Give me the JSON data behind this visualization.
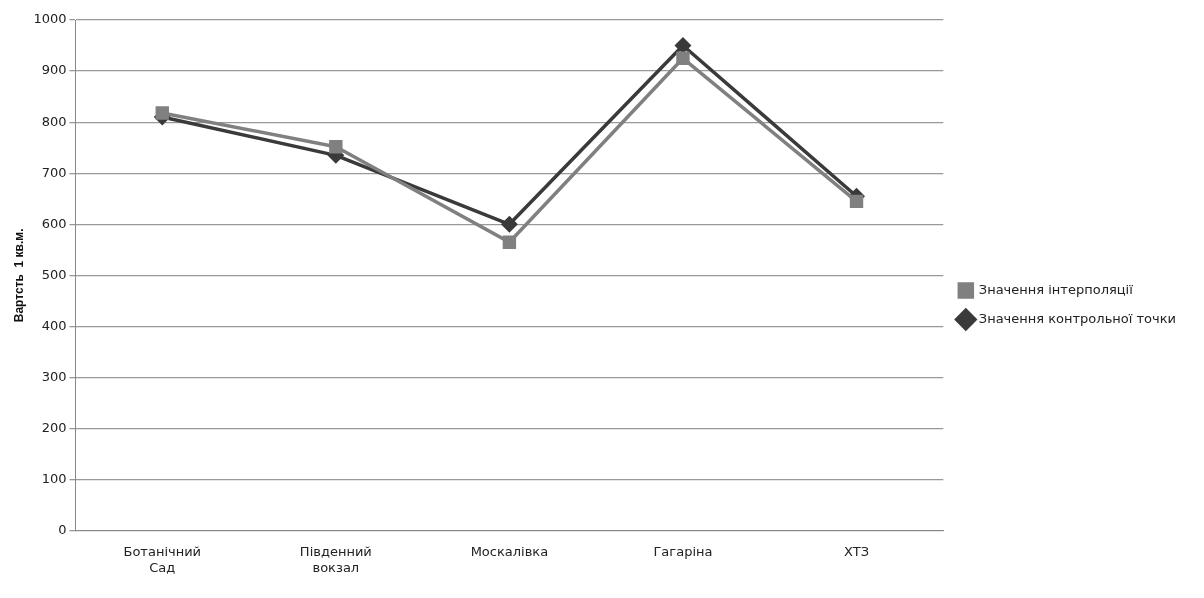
{
  "chart_data": {
    "type": "line",
    "ylabel": "Вартсть  1 кв.м.",
    "categories": [
      "Ботанічний Сад",
      "Південний вокзал",
      "Москалівка",
      "Гагаріна",
      "ХТЗ"
    ],
    "series": [
      {
        "name": "Значення контрольної точки",
        "color": "#3a3a3a",
        "marker": "diamond",
        "values": [
          810,
          735,
          600,
          950,
          655
        ]
      },
      {
        "name": "Значення інтерполяції",
        "color": "#808080",
        "marker": "square",
        "values": [
          818,
          752,
          565,
          925,
          645
        ]
      }
    ],
    "ylim": [
      0,
      1000
    ],
    "yticks": [
      0,
      100,
      200,
      300,
      400,
      500,
      600,
      700,
      800,
      900,
      1000
    ],
    "grid": "y",
    "legend": "right"
  }
}
